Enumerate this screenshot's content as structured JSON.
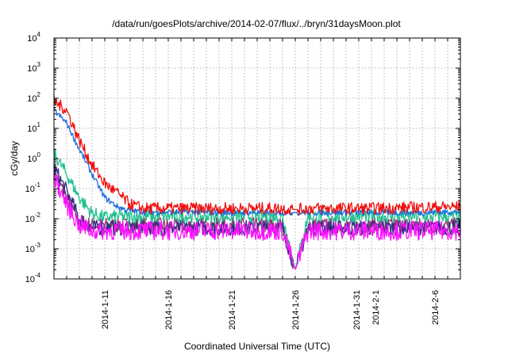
{
  "chart_data": {
    "type": "line",
    "title": "/data/run/goesPlots/archive/2014-02-07/flux/../bryn/31daysMoon.plot",
    "xlabel": "Coordinated Universal Time (UTC)",
    "ylabel": "cGy/day",
    "yscale": "log",
    "ylim": [
      0.0001,
      10000
    ],
    "xlim": [
      "2014-01-07",
      "2014-02-08"
    ],
    "y_ticks": [
      {
        "base": "10",
        "exp": "-4",
        "value": 0.0001
      },
      {
        "base": "10",
        "exp": "-3",
        "value": 0.001
      },
      {
        "base": "10",
        "exp": "-2",
        "value": 0.01
      },
      {
        "base": "10",
        "exp": "-1",
        "value": 0.1
      },
      {
        "base": "10",
        "exp": "0",
        "value": 1
      },
      {
        "base": "10",
        "exp": "1",
        "value": 10
      },
      {
        "base": "10",
        "exp": "2",
        "value": 100
      },
      {
        "base": "10",
        "exp": "3",
        "value": 1000
      },
      {
        "base": "10",
        "exp": "4",
        "value": 10000
      }
    ],
    "x_ticks": [
      {
        "label": "2014-1-11",
        "date": "2014-01-11"
      },
      {
        "label": "2014-1-16",
        "date": "2014-01-16"
      },
      {
        "label": "2014-1-21",
        "date": "2014-01-21"
      },
      {
        "label": "2014-1-26",
        "date": "2014-01-26"
      },
      {
        "label": "2014-1-31",
        "date": "2014-01-31"
      },
      {
        "label": "2014-2-1",
        "date": "2014-02-01"
      },
      {
        "label": "2014-2-6",
        "date": "2014-02-06"
      }
    ],
    "x_grid_dates": [
      "2014-01-08",
      "2014-01-09",
      "2014-01-10",
      "2014-01-11",
      "2014-01-12",
      "2014-01-13",
      "2014-01-14",
      "2014-01-15",
      "2014-01-16",
      "2014-01-17",
      "2014-01-18",
      "2014-01-19",
      "2014-01-20",
      "2014-01-21",
      "2014-01-22",
      "2014-01-23",
      "2014-01-24",
      "2014-01-25",
      "2014-01-26",
      "2014-01-27",
      "2014-01-28",
      "2014-01-29",
      "2014-01-30",
      "2014-01-31",
      "2014-02-01",
      "2014-02-02",
      "2014-02-03",
      "2014-02-04",
      "2014-02-05",
      "2014-02-06",
      "2014-02-07"
    ],
    "grid": true,
    "series": [
      {
        "color": "#f01010",
        "x": [
          "2014-01-07",
          "2014-01-08",
          "2014-01-09",
          "2014-01-10",
          "2014-01-11",
          "2014-01-12",
          "2014-01-13",
          "2014-01-14",
          "2014-01-20",
          "2014-01-25",
          "2014-01-26",
          "2014-01-27",
          "2014-02-01",
          "2014-02-05",
          "2014-02-08"
        ],
        "y": [
          80,
          40,
          4,
          0.6,
          0.15,
          0.07,
          0.03,
          0.022,
          0.022,
          0.022,
          0.02,
          0.022,
          0.022,
          0.024,
          0.025
        ]
      },
      {
        "color": "#1a6ee0",
        "x": [
          "2014-01-07",
          "2014-01-08",
          "2014-01-09",
          "2014-01-10",
          "2014-01-11",
          "2014-01-12",
          "2014-01-13",
          "2014-01-14",
          "2014-01-20",
          "2014-01-25",
          "2014-01-26",
          "2014-01-27",
          "2014-02-01",
          "2014-02-05",
          "2014-02-08"
        ],
        "y": [
          40,
          15,
          2,
          0.3,
          0.05,
          0.025,
          0.018,
          0.017,
          0.016,
          0.016,
          0.016,
          0.016,
          0.016,
          0.016,
          0.017
        ]
      },
      {
        "color": "#20c090",
        "x": [
          "2014-01-07",
          "2014-01-08",
          "2014-01-09",
          "2014-01-10",
          "2014-01-11",
          "2014-01-12",
          "2014-01-14",
          "2014-01-20",
          "2014-01-25",
          "2014-01-26",
          "2014-01-27",
          "2014-02-01",
          "2014-02-05",
          "2014-02-08"
        ],
        "y": [
          1.5,
          0.3,
          0.05,
          0.015,
          0.011,
          0.012,
          0.012,
          0.012,
          0.012,
          0.0002,
          0.012,
          0.012,
          0.012,
          0.012
        ]
      },
      {
        "color": "#303080",
        "x": [
          "2014-01-07",
          "2014-01-08",
          "2014-01-09",
          "2014-01-10",
          "2014-01-11",
          "2014-01-14",
          "2014-01-20",
          "2014-01-25",
          "2014-01-26",
          "2014-01-27",
          "2014-02-01",
          "2014-02-05",
          "2014-02-08"
        ],
        "y": [
          0.5,
          0.08,
          0.01,
          0.005,
          0.005,
          0.005,
          0.005,
          0.005,
          0.0002,
          0.005,
          0.005,
          0.005,
          0.005
        ]
      },
      {
        "color": "#8a3a70",
        "x": [
          "2014-01-07",
          "2014-01-08",
          "2014-01-09",
          "2014-01-10",
          "2014-01-11",
          "2014-01-14",
          "2014-01-20",
          "2014-01-25",
          "2014-01-26",
          "2014-01-27",
          "2014-02-01",
          "2014-02-05",
          "2014-02-08"
        ],
        "y": [
          0.35,
          0.05,
          0.008,
          0.006,
          0.006,
          0.006,
          0.006,
          0.006,
          0.0002,
          0.006,
          0.006,
          0.006,
          0.006
        ]
      },
      {
        "color": "#ff10ff",
        "x": [
          "2014-01-07",
          "2014-01-08",
          "2014-01-09",
          "2014-01-10",
          "2014-01-11",
          "2014-01-14",
          "2014-01-20",
          "2014-01-25",
          "2014-01-26",
          "2014-01-27",
          "2014-02-01",
          "2014-02-05",
          "2014-02-08"
        ],
        "y": [
          0.25,
          0.03,
          0.006,
          0.004,
          0.004,
          0.004,
          0.004,
          0.004,
          0.0002,
          0.004,
          0.004,
          0.004,
          0.004
        ]
      }
    ]
  }
}
